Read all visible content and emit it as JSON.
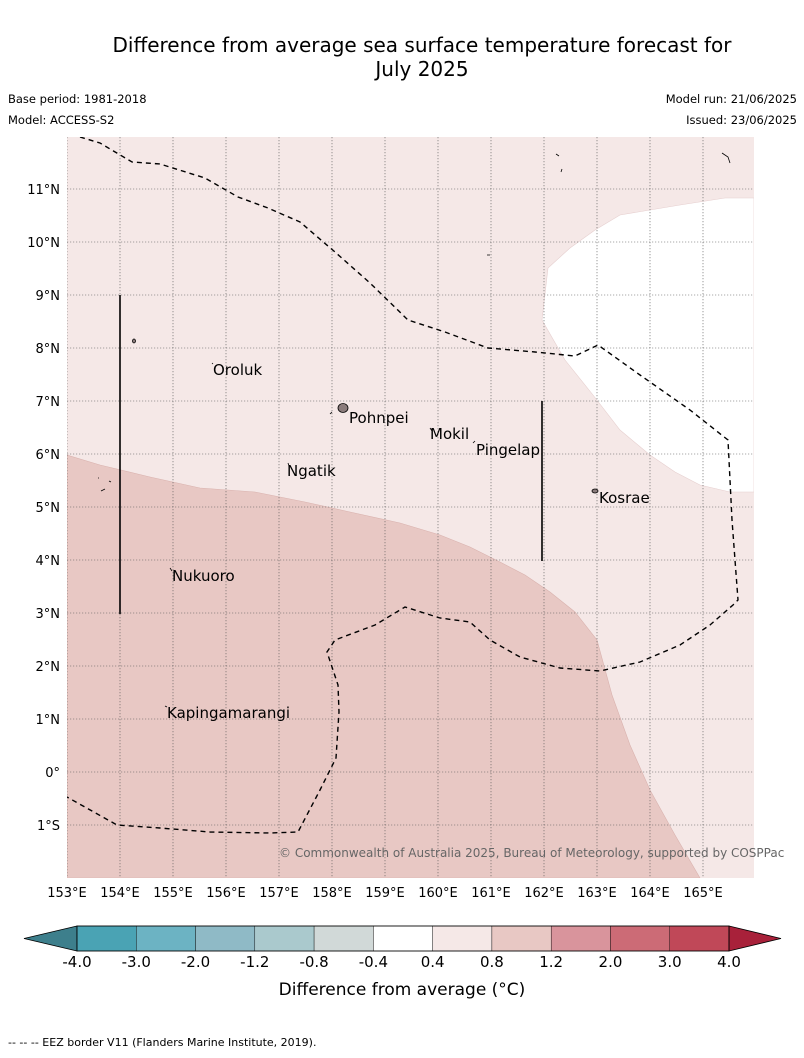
{
  "title": "Difference from average sea surface temperature forecast for July 2025",
  "title_line1": "Difference from average sea surface temperature forecast for",
  "title_line2": "July 2025",
  "base_period": "Base period: 1981-2018",
  "model": "Model: ACCESS-S2",
  "model_run": "Model run: 21/06/2025",
  "issued": "Issued: 23/06/2025",
  "map": {
    "lon_labels": [
      "153°E",
      "154°E",
      "155°E",
      "156°E",
      "157°E",
      "158°E",
      "159°E",
      "160°E",
      "161°E",
      "162°E",
      "163°E",
      "164°E",
      "165°E"
    ],
    "lat_labels": [
      "11°N",
      "10°N",
      "9°N",
      "8°N",
      "7°N",
      "6°N",
      "5°N",
      "4°N",
      "3°N",
      "2°N",
      "1°N",
      "0°",
      "1°S"
    ],
    "places": [
      "Oroluk",
      "Pohnpei",
      "Mokil",
      "Pingelap",
      "Ngatik",
      "Kosrae",
      "Nukuoro",
      "Kapingamarangi"
    ],
    "copyright": "© Commonwealth of Australia 2025, Bureau of Meteorology, supported by COSPPac",
    "colors": {
      "band_0.4_0.8": "#f5e8e7",
      "band_0.8_1.2": "#e8c8c4",
      "band_-0.4_0.4": "#ffffff"
    }
  },
  "colorbar": {
    "ticks": [
      "-4.0",
      "-3.0",
      "-2.0",
      "-1.2",
      "-0.8",
      "-0.4",
      "0.4",
      "0.8",
      "1.2",
      "2.0",
      "3.0",
      "4.0"
    ],
    "colors": [
      "#3d7f8c",
      "#4aa3b4",
      "#6cb3c3",
      "#8fbac6",
      "#aac9cd",
      "#d1d9d8",
      "#ffffff",
      "#f5e8e7",
      "#e8c8c4",
      "#d9949c",
      "#cc6b76",
      "#c04858",
      "#a8213a"
    ],
    "label": "Difference from average (°C)"
  },
  "footer": "-- -- -- EEZ border V11 (Flanders Marine Institute, 2019)."
}
